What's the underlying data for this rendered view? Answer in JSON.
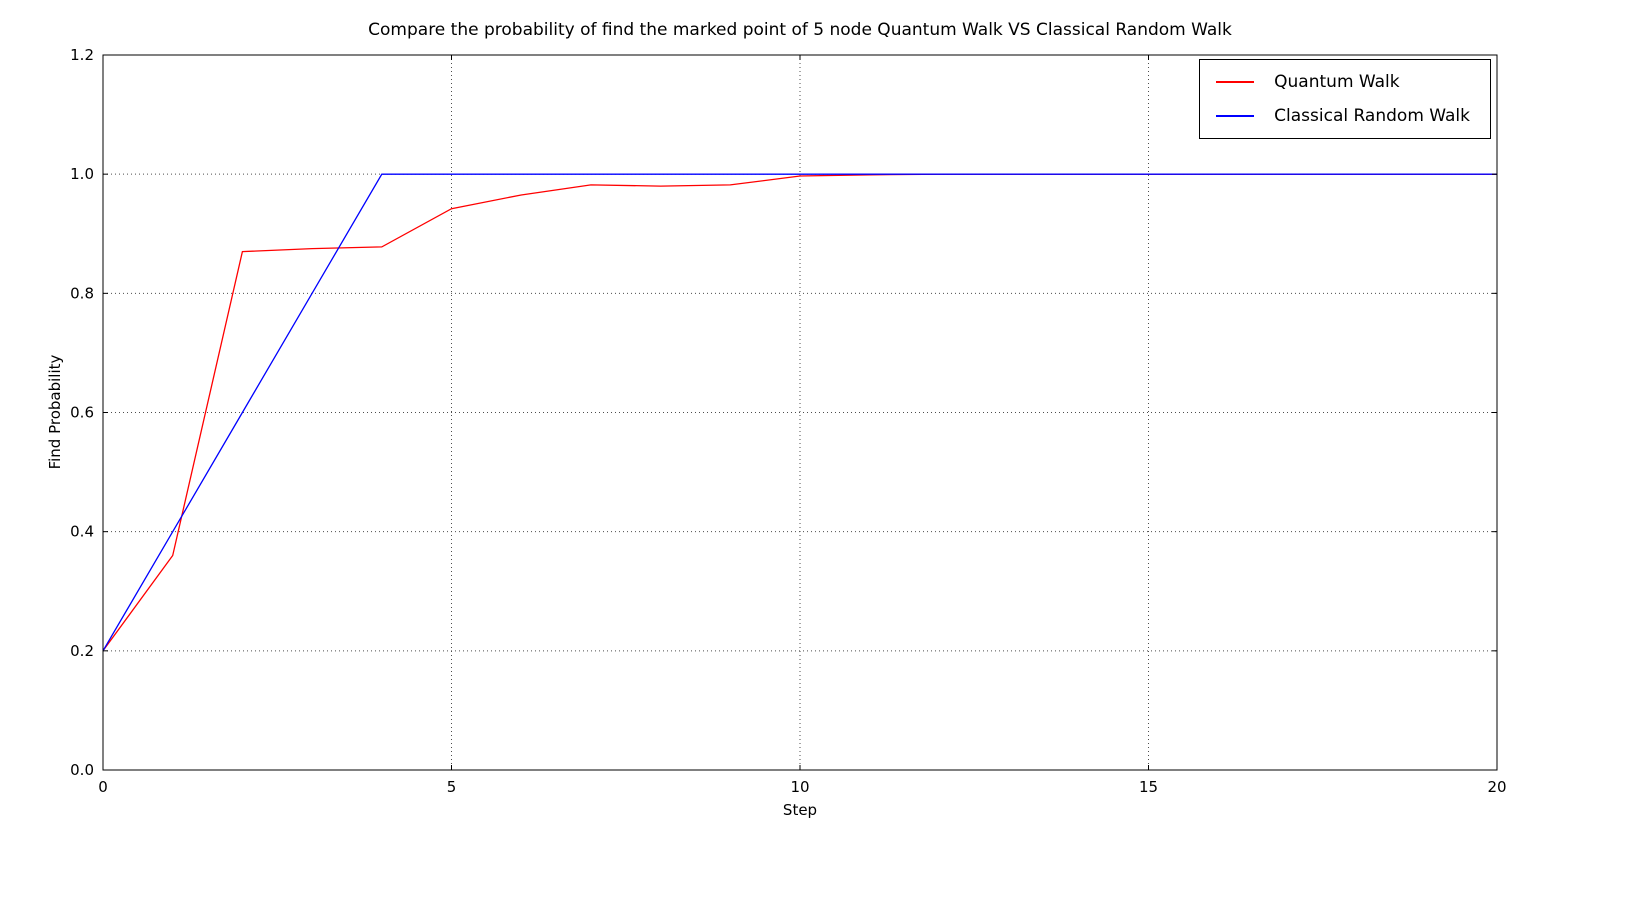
{
  "chart_data": {
    "type": "line",
    "title": "Compare the probability of find the marked point of 5 node Quantum Walk VS Classical Random Walk",
    "xlabel": "Step",
    "ylabel": "Find Probability",
    "xlim": [
      0,
      20
    ],
    "ylim": [
      0.0,
      1.2
    ],
    "xticks": [
      0,
      5,
      10,
      15,
      20
    ],
    "xtick_labels": [
      "0",
      "5",
      "10",
      "15",
      "20"
    ],
    "yticks": [
      0.0,
      0.2,
      0.4,
      0.6,
      0.8,
      1.0,
      1.2
    ],
    "ytick_labels": [
      "0.0",
      "0.2",
      "0.4",
      "0.6",
      "0.8",
      "1.0",
      "1.2"
    ],
    "grid": true,
    "grid_style": "dotted",
    "legend_position": "upper right",
    "x": [
      0,
      1,
      2,
      3,
      4,
      5,
      6,
      7,
      8,
      9,
      10,
      11,
      12,
      13,
      14,
      15,
      16,
      17,
      18,
      19,
      20
    ],
    "series": [
      {
        "name": "Quantum Walk",
        "color": "#ff0000",
        "values": [
          0.2,
          0.36,
          0.87,
          0.875,
          0.878,
          0.942,
          0.965,
          0.982,
          0.98,
          0.982,
          0.997,
          0.999,
          1.0,
          1.0,
          1.0,
          1.0,
          1.0,
          1.0,
          1.0,
          1.0,
          1.0
        ]
      },
      {
        "name": "Classical Random Walk",
        "color": "#0000ff",
        "values": [
          0.2,
          0.4,
          0.6,
          0.8,
          1.0,
          1.0,
          1.0,
          1.0,
          1.0,
          1.0,
          1.0,
          1.0,
          1.0,
          1.0,
          1.0,
          1.0,
          1.0,
          1.0,
          1.0,
          1.0,
          1.0
        ]
      }
    ]
  }
}
